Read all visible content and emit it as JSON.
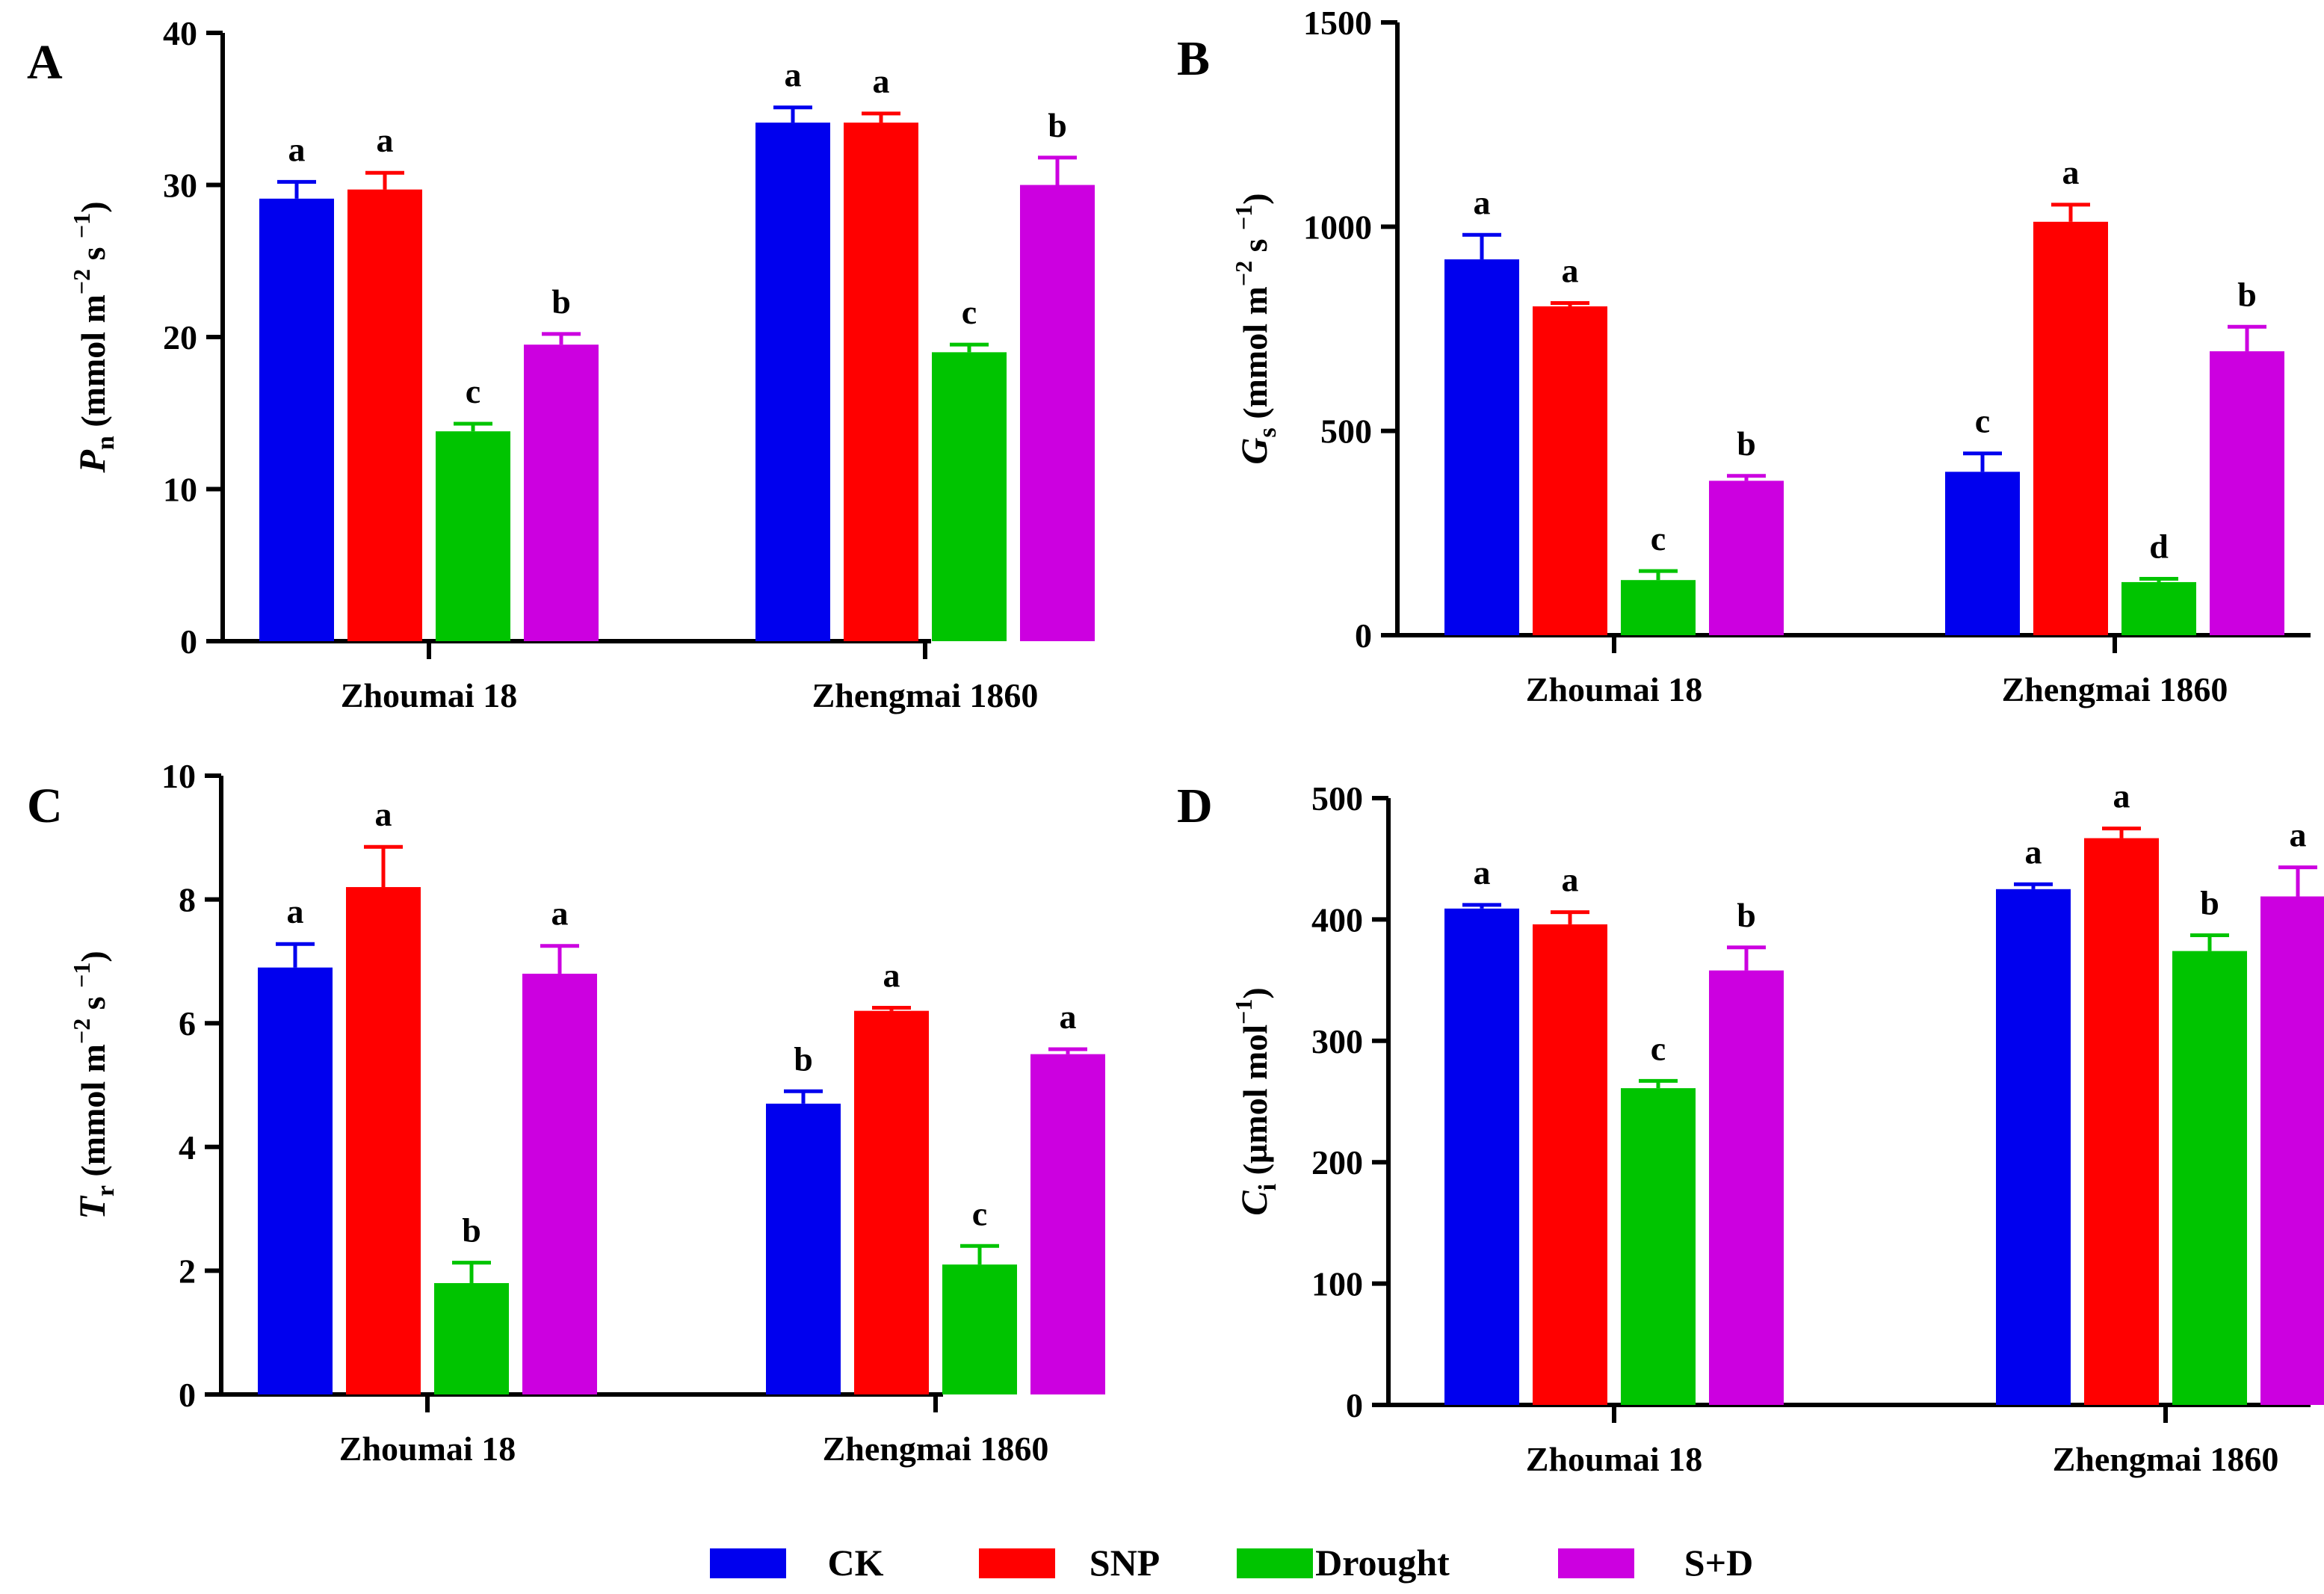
{
  "chart_data": [
    {
      "type": "bar",
      "panel": "A",
      "ylabel": {
        "symbol": "P",
        "sub": "n",
        "unit_prefix": "(mmol m",
        "unit_exp1": "−2",
        "unit_mid": " s ",
        "unit_exp2": "−1",
        "unit_suffix": ")"
      },
      "ylim": [
        0,
        40
      ],
      "yticks": [
        0,
        10,
        20,
        30,
        40
      ],
      "categories": [
        "Zhoumai 18",
        "Zhengmai 1860"
      ],
      "series": [
        {
          "name": "CK",
          "values": [
            29.1,
            34.1
          ],
          "errors": [
            1.1,
            1.0
          ],
          "letters": [
            "a",
            "a"
          ]
        },
        {
          "name": "SNP",
          "values": [
            29.7,
            34.1
          ],
          "errors": [
            1.1,
            0.6
          ],
          "letters": [
            "a",
            "a"
          ]
        },
        {
          "name": "Drought",
          "values": [
            13.8,
            19.0
          ],
          "errors": [
            0.5,
            0.5
          ],
          "letters": [
            "c",
            "c"
          ]
        },
        {
          "name": "S+D",
          "values": [
            19.5,
            30.0
          ],
          "errors": [
            0.7,
            1.8
          ],
          "letters": [
            "b",
            "b"
          ]
        }
      ]
    },
    {
      "type": "bar",
      "panel": "B",
      "ylabel": {
        "symbol": "G",
        "sub": "s",
        "unit_prefix": "(mmol m",
        "unit_exp1": "−2",
        "unit_mid": " s ",
        "unit_exp2": "−1",
        "unit_suffix": ")"
      },
      "ylim": [
        0,
        1500
      ],
      "yticks": [
        0,
        500,
        1000,
        1500
      ],
      "categories": [
        "Zhoumai 18",
        "Zhengmai 1860"
      ],
      "series": [
        {
          "name": "CK",
          "values": [
            920,
            400
          ],
          "errors": [
            60,
            45
          ],
          "letters": [
            "a",
            "c"
          ]
        },
        {
          "name": "SNP",
          "values": [
            805,
            1012
          ],
          "errors": [
            8,
            42
          ],
          "letters": [
            "a",
            "a"
          ]
        },
        {
          "name": "Drought",
          "values": [
            135,
            130
          ],
          "errors": [
            22,
            8
          ],
          "letters": [
            "c",
            "d"
          ]
        },
        {
          "name": "S+D",
          "values": [
            378,
            695
          ],
          "errors": [
            12,
            60
          ],
          "letters": [
            "b",
            "b"
          ]
        }
      ]
    },
    {
      "type": "bar",
      "panel": "C",
      "ylabel": {
        "symbol": "T",
        "sub": "r",
        "unit_prefix": "(mmol m",
        "unit_exp1": "−2",
        "unit_mid": " s ",
        "unit_exp2": "−1",
        "unit_suffix": ")"
      },
      "ylim": [
        0,
        10
      ],
      "yticks": [
        0,
        2,
        4,
        6,
        8,
        10
      ],
      "categories": [
        "Zhoumai 18",
        "Zhengmai 1860"
      ],
      "series": [
        {
          "name": "CK",
          "values": [
            6.9,
            4.7
          ],
          "errors": [
            0.38,
            0.2
          ],
          "letters": [
            "a",
            "b"
          ]
        },
        {
          "name": "SNP",
          "values": [
            8.2,
            6.2
          ],
          "errors": [
            0.65,
            0.05
          ],
          "letters": [
            "a",
            "a"
          ]
        },
        {
          "name": "Drought",
          "values": [
            1.8,
            2.1
          ],
          "errors": [
            0.33,
            0.3
          ],
          "letters": [
            "b",
            "c"
          ]
        },
        {
          "name": "S+D",
          "values": [
            6.8,
            5.5
          ],
          "errors": [
            0.45,
            0.08
          ],
          "letters": [
            "a",
            "a"
          ]
        }
      ]
    },
    {
      "type": "bar",
      "panel": "D",
      "ylabel": {
        "symbol": "C",
        "sub": "i",
        "unit_prefix": "(µmol mol",
        "unit_exp1": "−1",
        "unit_mid": "",
        "unit_exp2": "",
        "unit_suffix": ")"
      },
      "ylim": [
        0,
        500
      ],
      "yticks": [
        0,
        100,
        200,
        300,
        400,
        500
      ],
      "categories": [
        "Zhoumai 18",
        "Zhengmai 1860"
      ],
      "series": [
        {
          "name": "CK",
          "values": [
            409,
            425
          ],
          "errors": [
            3,
            4
          ],
          "letters": [
            "a",
            "a"
          ]
        },
        {
          "name": "SNP",
          "values": [
            396,
            467
          ],
          "errors": [
            10,
            8
          ],
          "letters": [
            "a",
            "a"
          ]
        },
        {
          "name": "Drought",
          "values": [
            261,
            374
          ],
          "errors": [
            6,
            13
          ],
          "letters": [
            "c",
            "b"
          ]
        },
        {
          "name": "S+D",
          "values": [
            358,
            419
          ],
          "errors": [
            19,
            24
          ],
          "letters": [
            "b",
            "a"
          ]
        }
      ]
    }
  ],
  "legend": [
    {
      "name": "CK",
      "color": "#0000ee"
    },
    {
      "name": "SNP",
      "color": "#ff0000"
    },
    {
      "name": "Drought",
      "color": "#00c400"
    },
    {
      "name": "S+D",
      "color": "#cc00e0"
    }
  ]
}
